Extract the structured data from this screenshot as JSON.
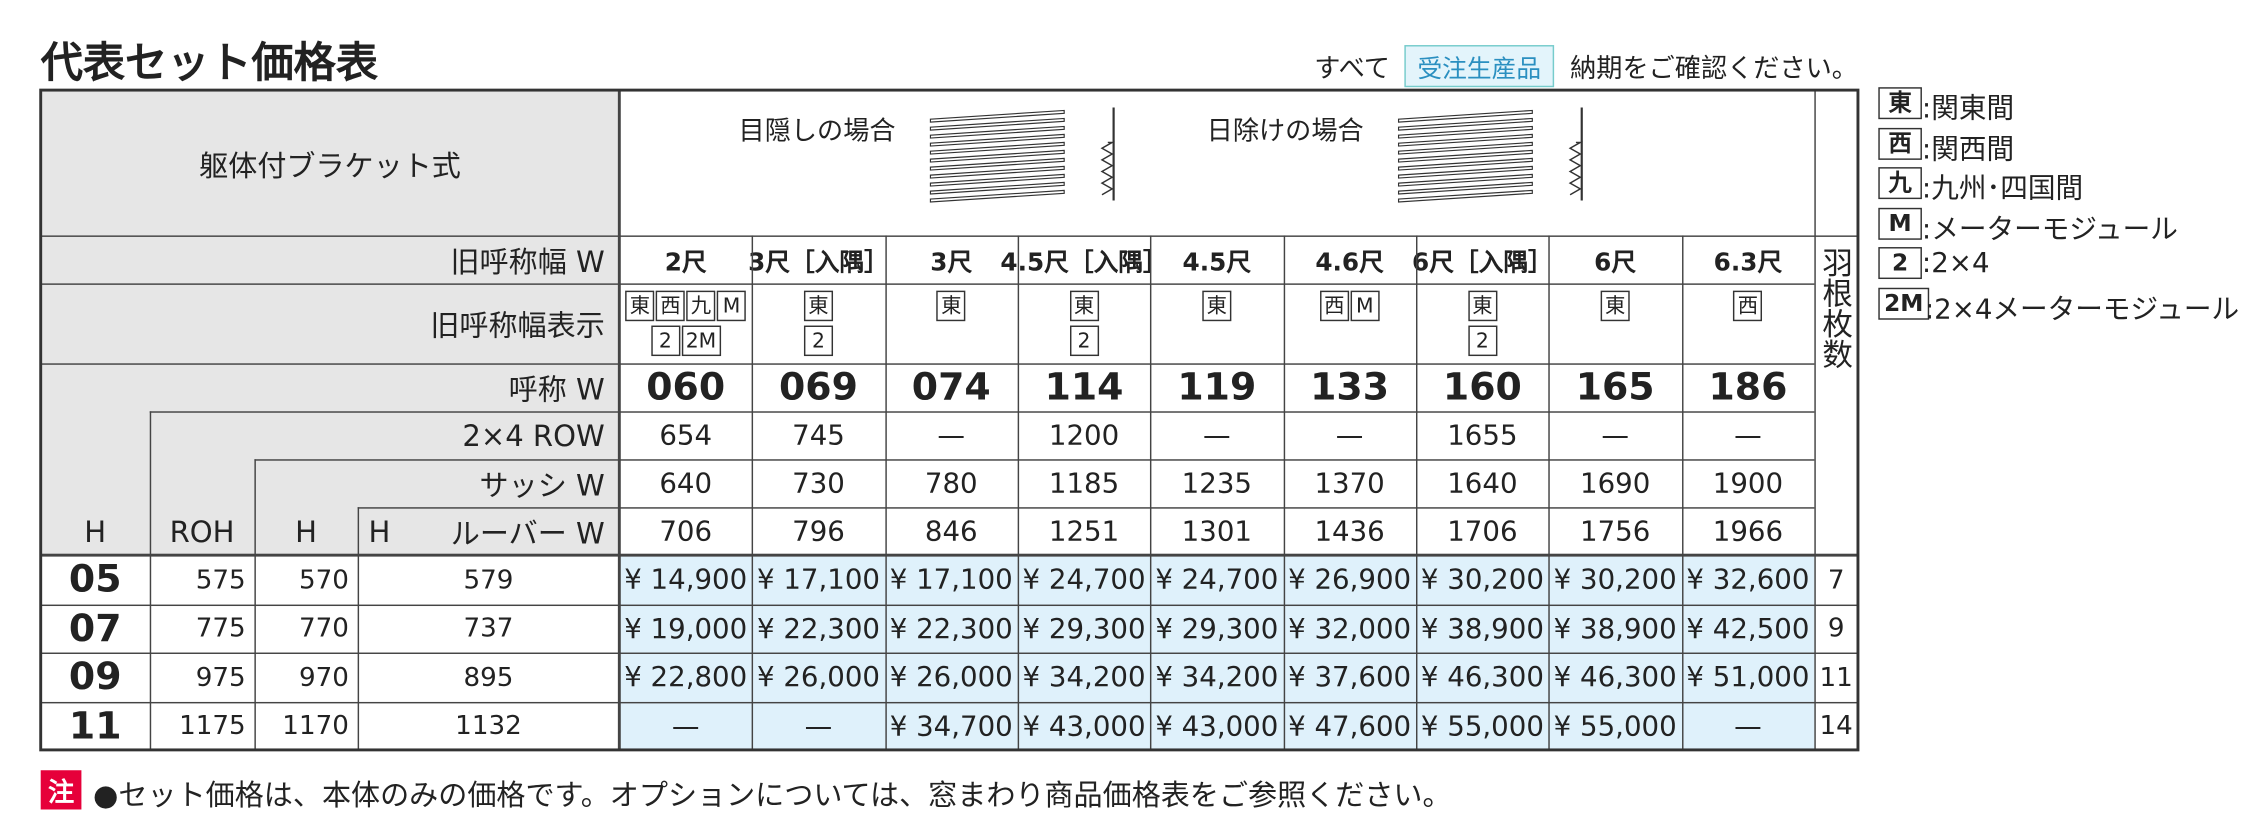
{
  "header": {
    "title": "代表セット価格表",
    "note_prefix": "すべて",
    "badge": "受注生産品",
    "note_suffix": "納期をご確認ください。"
  },
  "table": {
    "bracket_label": "躯体付ブラケット式",
    "illustrations": [
      "目隠しの場合",
      "日除けの場合"
    ],
    "row_labels": {
      "old_width": "旧呼称幅 W",
      "old_width_display": "旧呼称幅表示",
      "name": "呼称 W",
      "row_2x4": "2×4 ROW",
      "sash": "サッシ W",
      "louver_h": "H",
      "louver": "ルーバー W"
    },
    "corner": [
      "H",
      "ROH",
      "H"
    ],
    "fins_header": "羽根枚数",
    "columns": [
      {
        "old_width": "2尺",
        "badges": [
          [
            "東",
            "西",
            "九",
            "M"
          ],
          [
            "2",
            "2M"
          ]
        ],
        "name": "060",
        "row_2x4": "654",
        "sash": "640",
        "louver": "706"
      },
      {
        "old_width": "3尺［入隅］",
        "badges": [
          [
            "東"
          ],
          [
            "2"
          ]
        ],
        "name": "069",
        "row_2x4": "745",
        "sash": "730",
        "louver": "796"
      },
      {
        "old_width": "3尺",
        "badges": [
          [
            "東"
          ]
        ],
        "name": "074",
        "row_2x4": "—",
        "sash": "780",
        "louver": "846"
      },
      {
        "old_width": "4.5尺［入隅］",
        "badges": [
          [
            "東"
          ],
          [
            "2"
          ]
        ],
        "name": "114",
        "row_2x4": "1200",
        "sash": "1185",
        "louver": "1251"
      },
      {
        "old_width": "4.5尺",
        "badges": [
          [
            "東"
          ]
        ],
        "name": "119",
        "row_2x4": "—",
        "sash": "1235",
        "louver": "1301"
      },
      {
        "old_width": "4.6尺",
        "badges": [
          [
            "西",
            "M"
          ]
        ],
        "name": "133",
        "row_2x4": "—",
        "sash": "1370",
        "louver": "1436"
      },
      {
        "old_width": "6尺［入隅］",
        "badges": [
          [
            "東"
          ],
          [
            "2"
          ]
        ],
        "name": "160",
        "row_2x4": "1655",
        "sash": "1640",
        "louver": "1706"
      },
      {
        "old_width": "6尺",
        "badges": [
          [
            "東"
          ]
        ],
        "name": "165",
        "row_2x4": "—",
        "sash": "1690",
        "louver": "1756"
      },
      {
        "old_width": "6.3尺",
        "badges": [
          [
            "西"
          ]
        ],
        "name": "186",
        "row_2x4": "—",
        "sash": "1900",
        "louver": "1966"
      }
    ],
    "rows": [
      {
        "h": "05",
        "roh": "575",
        "h2": "570",
        "louver_h": "579",
        "prices": [
          "¥ 14,900",
          "¥ 17,100",
          "¥ 17,100",
          "¥ 24,700",
          "¥ 24,700",
          "¥ 26,900",
          "¥ 30,200",
          "¥ 30,200",
          "¥ 32,600"
        ],
        "fins": "7"
      },
      {
        "h": "07",
        "roh": "775",
        "h2": "770",
        "louver_h": "737",
        "prices": [
          "¥ 19,000",
          "¥ 22,300",
          "¥ 22,300",
          "¥ 29,300",
          "¥ 29,300",
          "¥ 32,000",
          "¥ 38,900",
          "¥ 38,900",
          "¥ 42,500"
        ],
        "fins": "9"
      },
      {
        "h": "09",
        "roh": "975",
        "h2": "970",
        "louver_h": "895",
        "prices": [
          "¥ 22,800",
          "¥ 26,000",
          "¥ 26,000",
          "¥ 34,200",
          "¥ 34,200",
          "¥ 37,600",
          "¥ 46,300",
          "¥ 46,300",
          "¥ 51,000"
        ],
        "fins": "11"
      },
      {
        "h": "11",
        "roh": "1175",
        "h2": "1170",
        "louver_h": "1132",
        "prices": [
          "—",
          "—",
          "¥ 34,700",
          "¥ 43,000",
          "¥ 43,000",
          "¥ 47,600",
          "¥ 55,000",
          "¥ 55,000",
          "—"
        ],
        "fins": "14"
      }
    ]
  },
  "legend": [
    {
      "key": "東",
      "text": ":関東間"
    },
    {
      "key": "西",
      "text": ":関西間"
    },
    {
      "key": "九",
      "text": ":九州･四国間"
    },
    {
      "key": "M",
      "text": ":メーターモジュール"
    },
    {
      "key": "2",
      "text": ":2×4"
    },
    {
      "key": "2M",
      "text": ":2×4メーターモジュール"
    }
  ],
  "footnote": {
    "badge": "注",
    "text": "●セット価格は、本体のみの価格です。オプションについては、窓まわり商品価格表をご参照ください。"
  }
}
